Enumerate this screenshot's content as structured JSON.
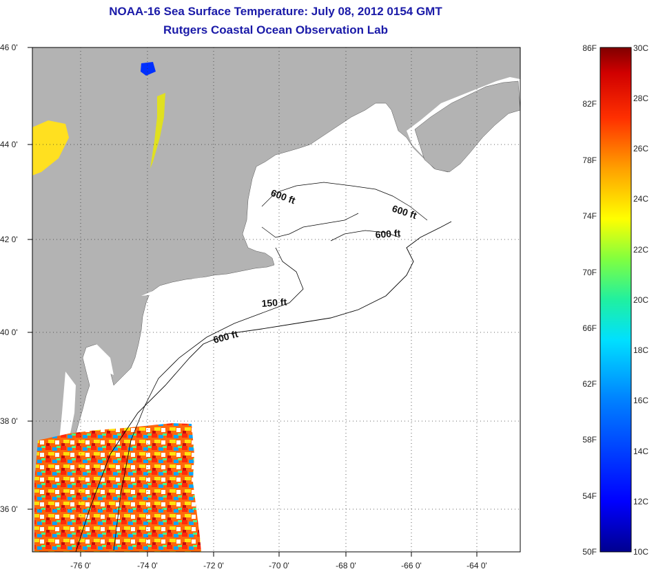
{
  "header": {
    "title": "NOAA-16 Sea Surface Temperature:  July 08, 2012 0154 GMT",
    "subtitle": "Rutgers Coastal Ocean Observation Lab"
  },
  "map": {
    "lat_labels": [
      "46 0'",
      "44 0'",
      "42 0'",
      "40 0'",
      "38 0'",
      "36 0'"
    ],
    "lon_labels": [
      "-76 0'",
      "-74 0'",
      "-72 0'",
      "-70 0'",
      "-68 0'",
      "-66 0'",
      "-64 0'"
    ],
    "contour_labels": [
      "600 ft",
      "600 ft",
      "600 ft",
      "150 ft",
      "600 ft"
    ],
    "colors": {
      "land": "#b3b3b3",
      "ocean": "#ffffff",
      "title": "#1a1aa8"
    }
  },
  "colorbar": {
    "fahrenheit_labels": [
      "86F",
      "82F",
      "78F",
      "74F",
      "70F",
      "66F",
      "62F",
      "58F",
      "54F",
      "50F"
    ],
    "celsius_labels": [
      "30C",
      "28C",
      "26C",
      "24C",
      "22C",
      "20C",
      "18C",
      "16C",
      "14C",
      "12C",
      "10C"
    ]
  }
}
